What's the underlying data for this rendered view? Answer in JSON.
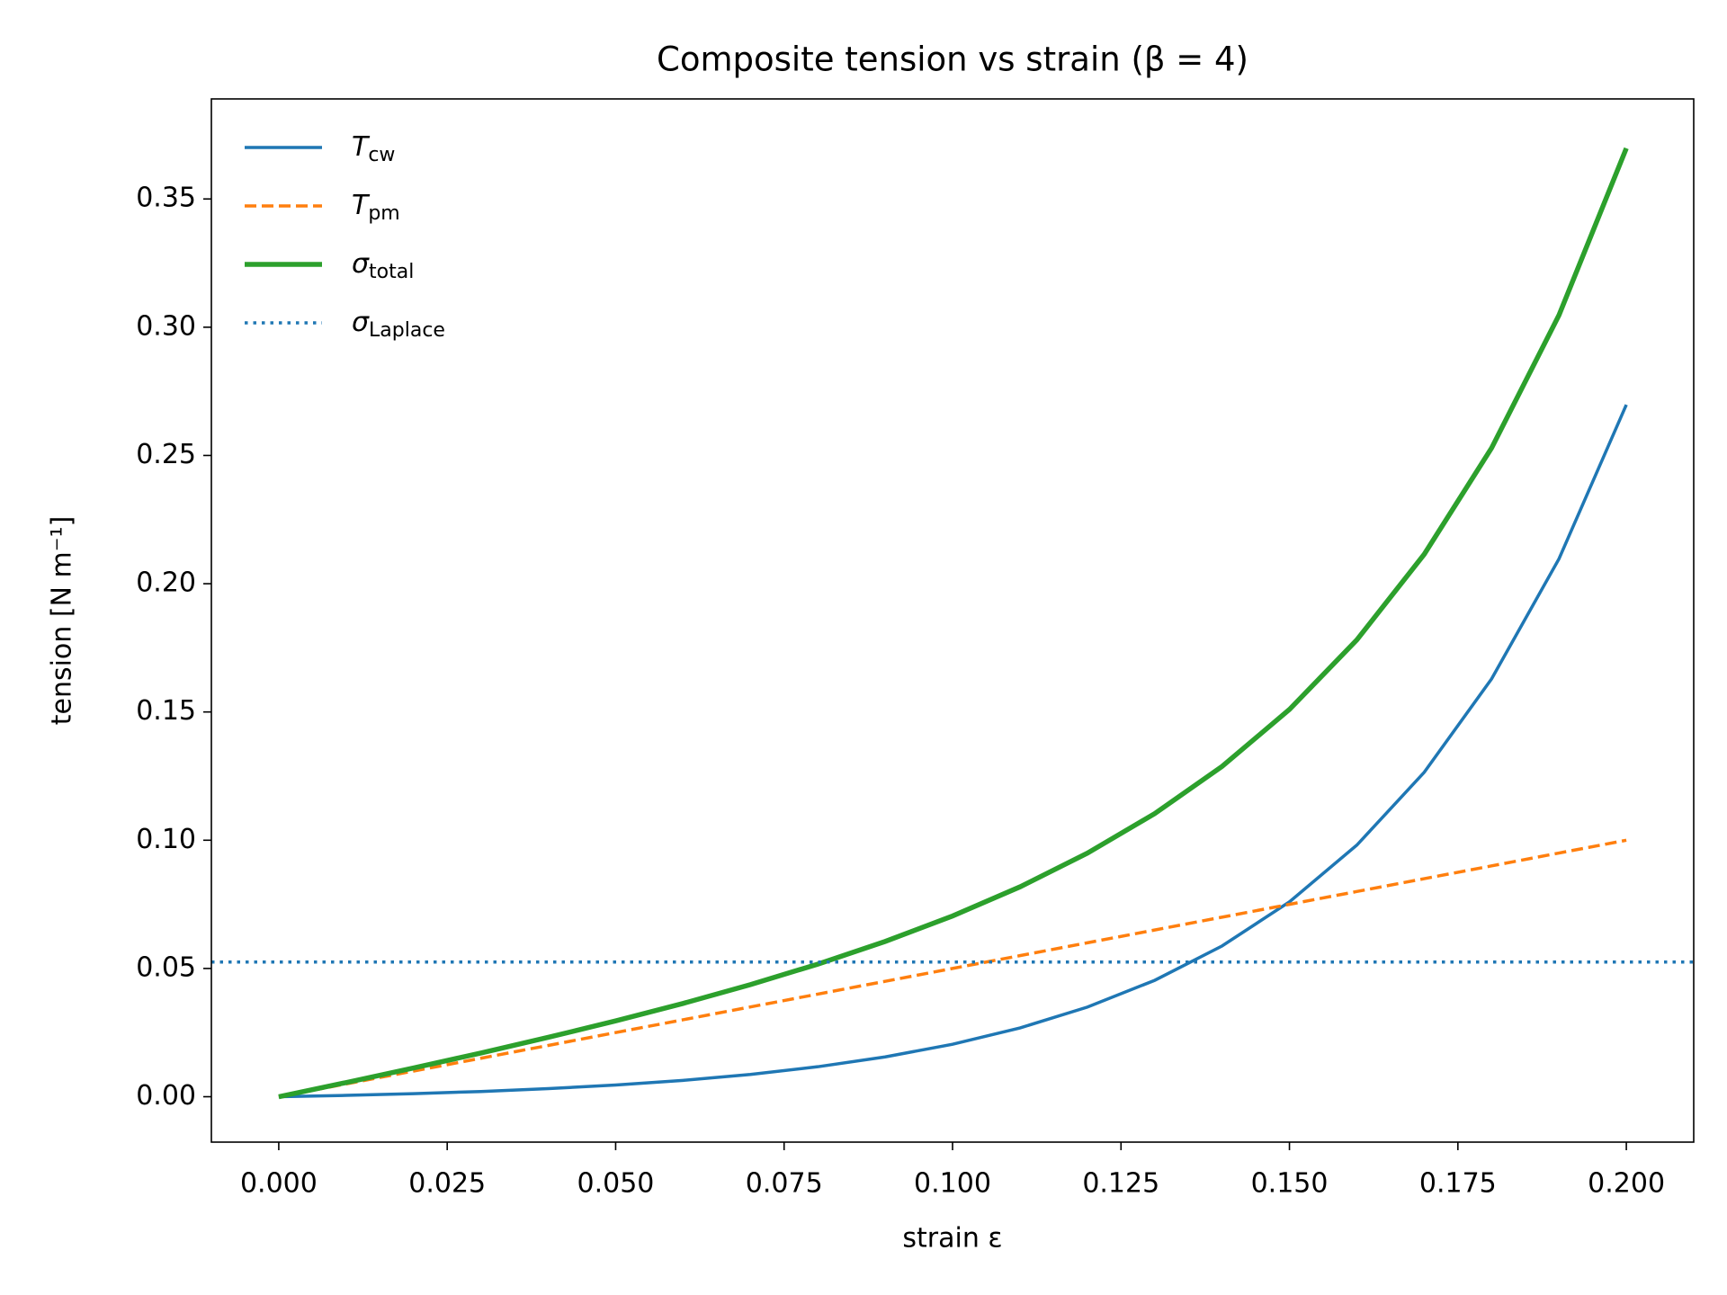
{
  "chart_data": {
    "type": "line",
    "title": "Composite tension vs strain  (β = 4)",
    "xlabel": "strain ε",
    "ylabel": "tension  [N m⁻¹]",
    "x": [
      0,
      0.01,
      0.02,
      0.03,
      0.04,
      0.05,
      0.06,
      0.07,
      0.08,
      0.09,
      0.1,
      0.11,
      0.12,
      0.13,
      0.14,
      0.15,
      0.16,
      0.17,
      0.18,
      0.19,
      0.2
    ],
    "series": [
      {
        "name": "T",
        "subscript": "cw",
        "color": "#1f77b4",
        "style": "solid",
        "values": [
          0,
          0.00052,
          0.00119,
          0.00204,
          0.00315,
          0.00456,
          0.00637,
          0.0087,
          0.01169,
          0.01553,
          0.02046,
          0.0268,
          0.03493,
          0.04537,
          0.05877,
          0.07598,
          0.09808,
          0.12646,
          0.1629,
          0.20968,
          0.26976
        ]
      },
      {
        "name": "T",
        "subscript": "pm",
        "color": "#ff7f0e",
        "style": "dashed",
        "values": [
          0,
          0.005,
          0.01,
          0.015,
          0.02,
          0.025,
          0.03,
          0.035,
          0.04,
          0.045,
          0.05,
          0.055,
          0.06,
          0.065,
          0.07,
          0.075,
          0.08,
          0.085,
          0.09,
          0.095,
          0.1
        ]
      },
      {
        "name": "σ",
        "subscript": "total",
        "color": "#2ca02c",
        "style": "thick",
        "values": [
          0,
          0.00552,
          0.01119,
          0.01704,
          0.02315,
          0.02956,
          0.03637,
          0.0437,
          0.05169,
          0.06053,
          0.07046,
          0.0818,
          0.09493,
          0.11037,
          0.12877,
          0.15098,
          0.17808,
          0.21146,
          0.2529,
          0.30468,
          0.36976
        ]
      },
      {
        "name": "σ",
        "subscript": "Laplace",
        "color": "#1f77b4",
        "style": "dotted",
        "hline": 0.0525
      }
    ],
    "xlim": [
      -0.01,
      0.21
    ],
    "ylim": [
      -0.0177,
      0.389
    ],
    "xticks": [
      {
        "value": 0,
        "label": "0.000"
      },
      {
        "value": 0.025,
        "label": "0.025"
      },
      {
        "value": 0.05,
        "label": "0.050"
      },
      {
        "value": 0.075,
        "label": "0.075"
      },
      {
        "value": 0.1,
        "label": "0.100"
      },
      {
        "value": 0.125,
        "label": "0.125"
      },
      {
        "value": 0.15,
        "label": "0.150"
      },
      {
        "value": 0.175,
        "label": "0.175"
      },
      {
        "value": 0.2,
        "label": "0.200"
      }
    ],
    "yticks": [
      {
        "value": 0,
        "label": "0.00"
      },
      {
        "value": 0.05,
        "label": "0.05"
      },
      {
        "value": 0.1,
        "label": "0.10"
      },
      {
        "value": 0.15,
        "label": "0.15"
      },
      {
        "value": 0.2,
        "label": "0.20"
      },
      {
        "value": 0.25,
        "label": "0.25"
      },
      {
        "value": 0.3,
        "label": "0.30"
      },
      {
        "value": 0.35,
        "label": "0.35"
      }
    ],
    "legend": "upper-left"
  }
}
